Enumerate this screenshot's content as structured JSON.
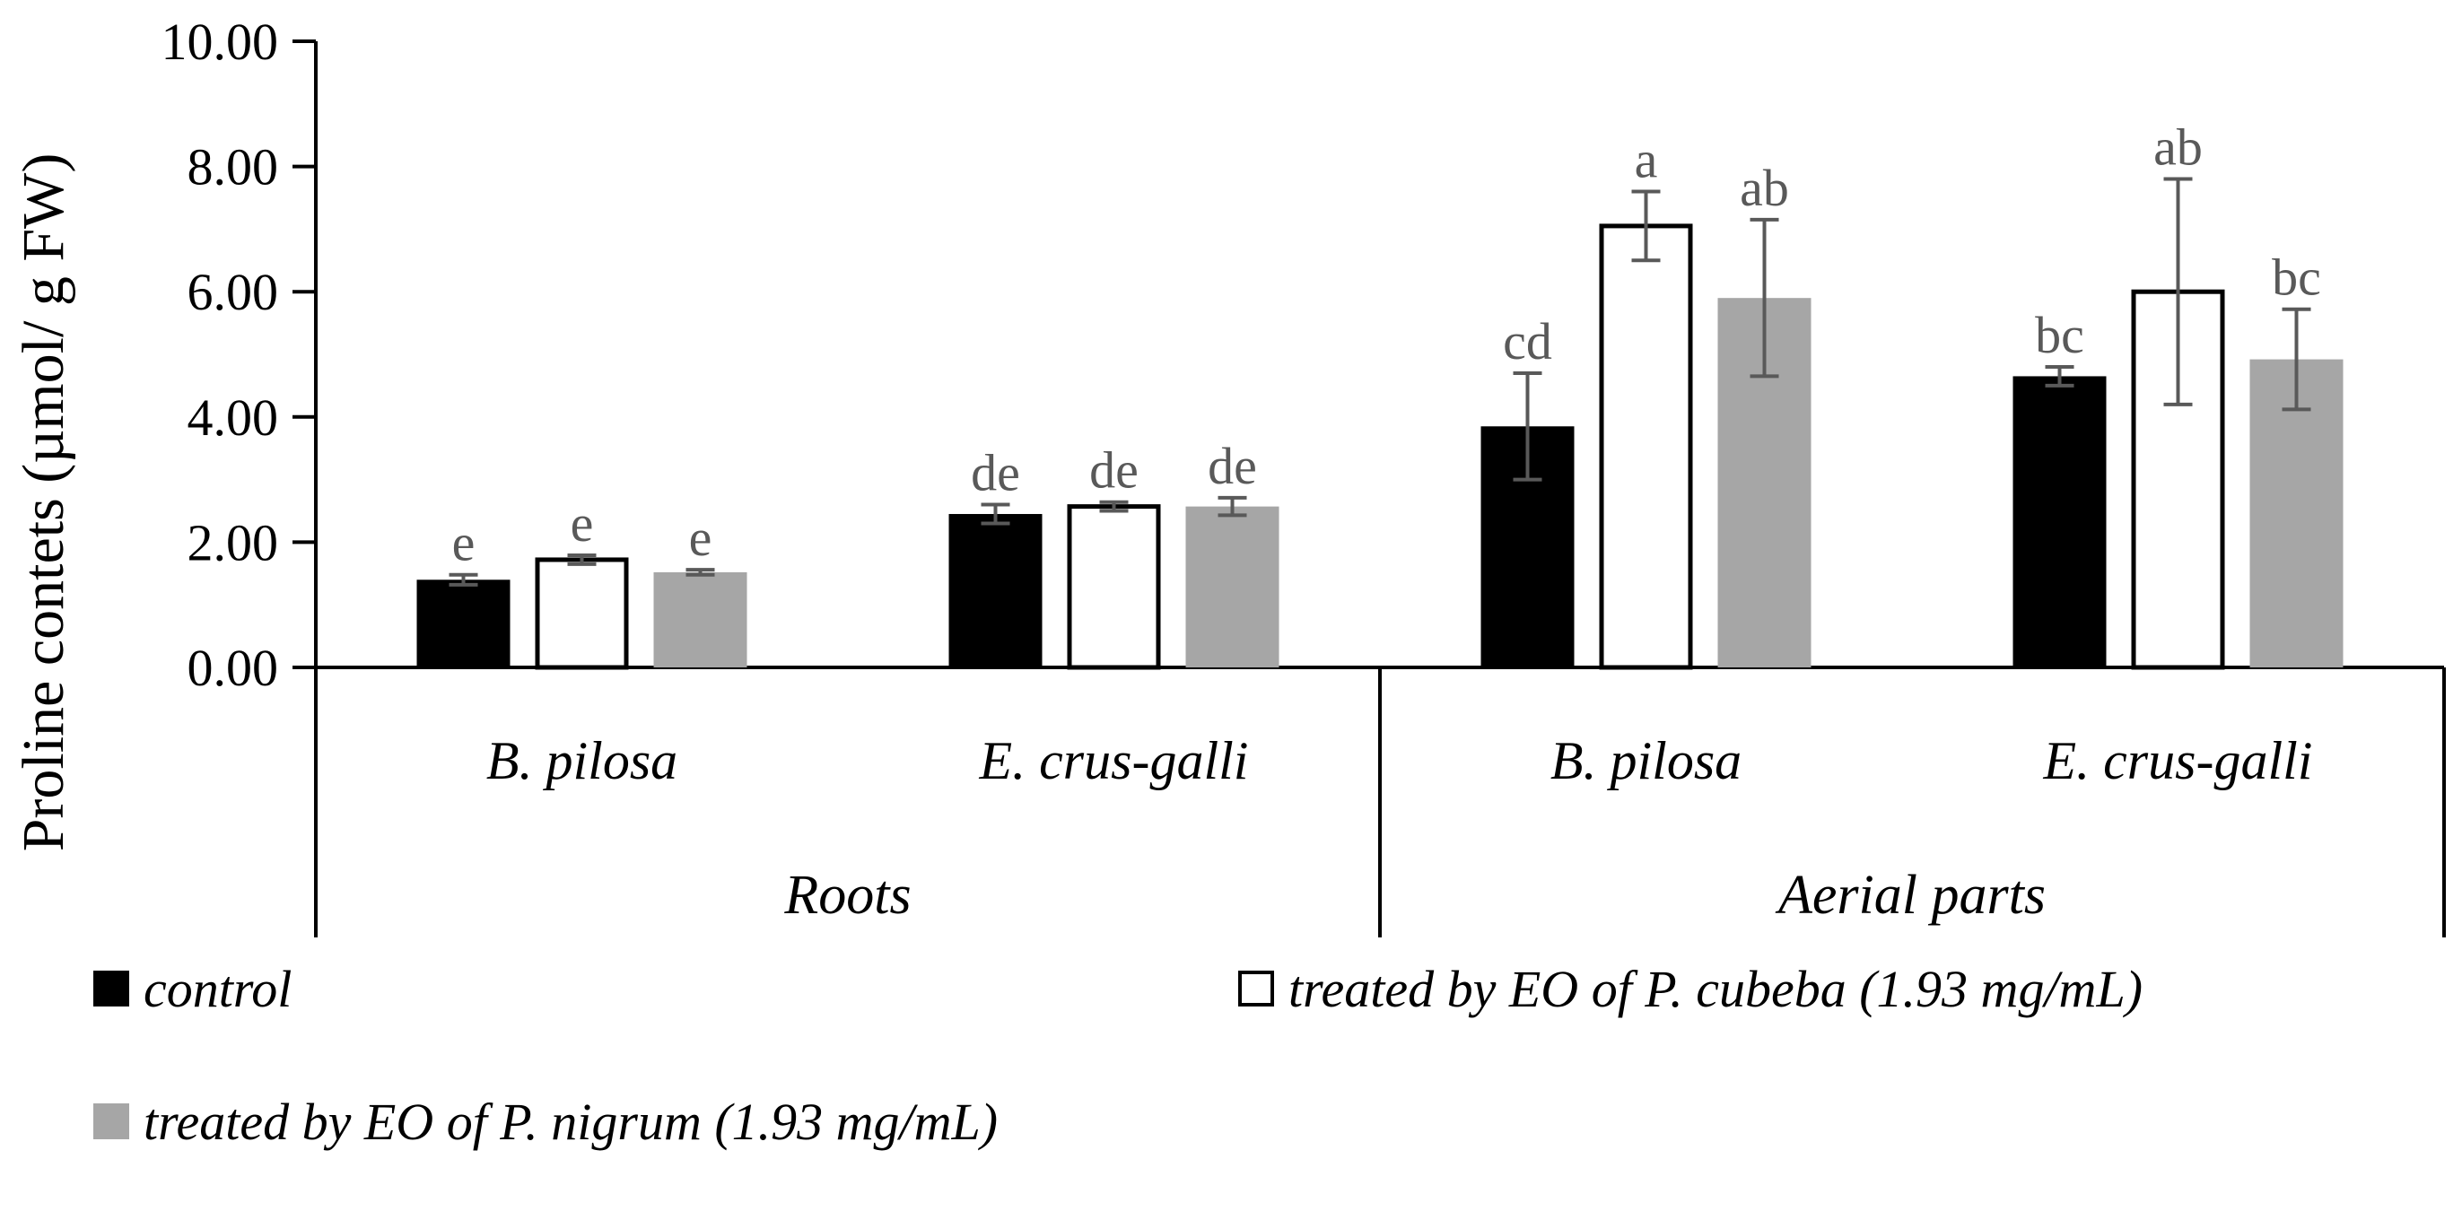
{
  "chart_data": {
    "type": "bar",
    "title": "",
    "ylabel": "Proline contets (µmol/ g FW)",
    "xlabel": "",
    "ylim": [
      0,
      10
    ],
    "yticks": [
      0,
      2,
      4,
      6,
      8,
      10
    ],
    "ytick_labels": [
      "0.00",
      "2.00",
      "4.00",
      "6.00",
      "8.00",
      "10.00"
    ],
    "grid": false,
    "legend_position": "bottom",
    "groups": [
      {
        "label": "Roots",
        "categories": [
          "B. pilosa",
          "E. crus-galli"
        ]
      },
      {
        "label": "Aerial parts",
        "categories": [
          "B. pilosa",
          "E. crus-galli"
        ]
      }
    ],
    "categories": [
      "B. pilosa",
      "E. crus-galli",
      "B. pilosa",
      "E. crus-galli"
    ],
    "series": [
      {
        "name": "control",
        "color": "#000000",
        "stroke": "#000000",
        "values": [
          1.4,
          2.45,
          3.85,
          4.65
        ],
        "errors": [
          0.08,
          0.15,
          0.85,
          0.15
        ],
        "letters": [
          "e",
          "de",
          "cd",
          "bc"
        ]
      },
      {
        "name": "treated by EO of P. cubeba (1.93 mg/mL)",
        "color": "#ffffff",
        "stroke": "#000000",
        "values": [
          1.72,
          2.57,
          7.05,
          6.0
        ],
        "errors": [
          0.07,
          0.07,
          0.55,
          1.8
        ],
        "letters": [
          "e",
          "de",
          "a",
          "ab"
        ]
      },
      {
        "name": "treated by EO of P. nigrum (1.93 mg/mL)",
        "color": "#a6a6a6",
        "stroke": "#a6a6a6",
        "values": [
          1.52,
          2.57,
          5.9,
          4.92
        ],
        "errors": [
          0.04,
          0.14,
          1.25,
          0.8
        ],
        "letters": [
          "e",
          "de",
          "ab",
          "bc"
        ]
      }
    ]
  }
}
